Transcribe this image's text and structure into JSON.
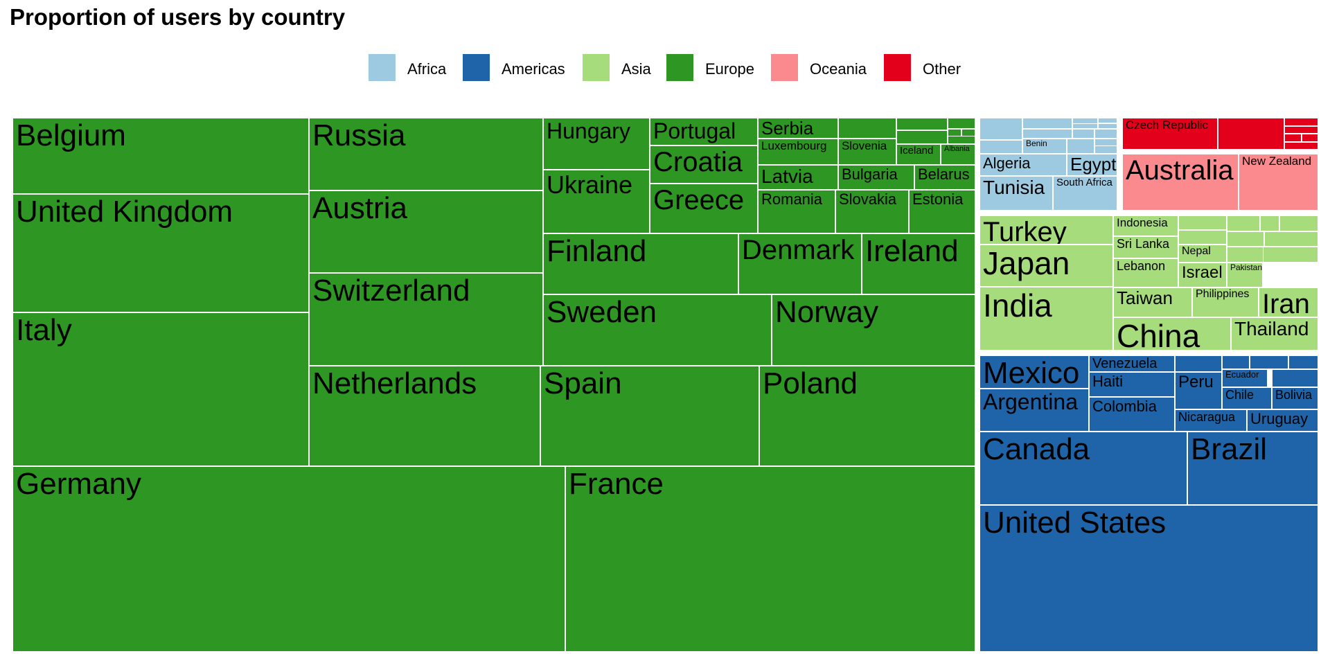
{
  "chart_data": {
    "type": "treemap",
    "title": "Proportion of users by country",
    "legend_position": "top",
    "colors": {
      "Africa": "#9ecae1",
      "Americas": "#1f64a8",
      "Asia": "#a6dc7c",
      "Europe": "#2e9622",
      "Oceania": "#fa8a8e",
      "Other": "#e3001a"
    },
    "legend": [
      "Africa",
      "Americas",
      "Asia",
      "Europe",
      "Oceania",
      "Other"
    ],
    "groups": [
      {
        "name": "Europe",
        "cells": [
          {
            "label": "Belgium"
          },
          {
            "label": "United Kingdom"
          },
          {
            "label": "Italy"
          },
          {
            "label": "Germany"
          },
          {
            "label": "France"
          },
          {
            "label": "Russia"
          },
          {
            "label": "Austria"
          },
          {
            "label": "Switzerland"
          },
          {
            "label": "Netherlands"
          },
          {
            "label": "Spain"
          },
          {
            "label": "Poland"
          },
          {
            "label": "Hungary"
          },
          {
            "label": "Ukraine"
          },
          {
            "label": "Portugal"
          },
          {
            "label": "Croatia"
          },
          {
            "label": "Greece"
          },
          {
            "label": "Serbia"
          },
          {
            "label": "Luxembourg"
          },
          {
            "label": "Slovenia"
          },
          {
            "label": "Iceland"
          },
          {
            "label": "Albania"
          },
          {
            "label": "Latvia"
          },
          {
            "label": "Bulgaria"
          },
          {
            "label": "Belarus"
          },
          {
            "label": "Romania"
          },
          {
            "label": "Slovakia"
          },
          {
            "label": "Estonia"
          },
          {
            "label": "Finland"
          },
          {
            "label": "Denmark"
          },
          {
            "label": "Ireland"
          },
          {
            "label": "Sweden"
          },
          {
            "label": "Norway"
          },
          {
            "label": ""
          },
          {
            "label": ""
          },
          {
            "label": ""
          },
          {
            "label": ""
          },
          {
            "label": ""
          },
          {
            "label": ""
          },
          {
            "label": ""
          }
        ]
      },
      {
        "name": "Africa",
        "cells": [
          {
            "label": "Algeria"
          },
          {
            "label": "Egypt"
          },
          {
            "label": "Tunisia"
          },
          {
            "label": "South Africa"
          },
          {
            "label": "Benin"
          },
          {
            "label": ""
          },
          {
            "label": ""
          },
          {
            "label": ""
          },
          {
            "label": ""
          },
          {
            "label": ""
          },
          {
            "label": ""
          },
          {
            "label": ""
          },
          {
            "label": ""
          },
          {
            "label": ""
          },
          {
            "label": ""
          },
          {
            "label": ""
          },
          {
            "label": ""
          },
          {
            "label": ""
          },
          {
            "label": ""
          }
        ]
      },
      {
        "name": "Other",
        "cells": [
          {
            "label": "Czech Republic"
          },
          {
            "label": ""
          },
          {
            "label": ""
          },
          {
            "label": ""
          },
          {
            "label": ""
          },
          {
            "label": ""
          },
          {
            "label": ""
          },
          {
            "label": ""
          }
        ]
      },
      {
        "name": "Oceania",
        "cells": [
          {
            "label": "Australia"
          },
          {
            "label": "New Zealand"
          }
        ]
      },
      {
        "name": "Asia",
        "cells": [
          {
            "label": "Turkey"
          },
          {
            "label": "Japan"
          },
          {
            "label": "India"
          },
          {
            "label": "China"
          },
          {
            "label": "Indonesia"
          },
          {
            "label": "Sri Lanka"
          },
          {
            "label": "Nepal"
          },
          {
            "label": "Lebanon"
          },
          {
            "label": "Israel"
          },
          {
            "label": "Pakistan"
          },
          {
            "label": "Taiwan"
          },
          {
            "label": "Philippines"
          },
          {
            "label": "Iran"
          },
          {
            "label": "Thailand"
          },
          {
            "label": ""
          },
          {
            "label": ""
          },
          {
            "label": ""
          },
          {
            "label": ""
          },
          {
            "label": ""
          },
          {
            "label": ""
          },
          {
            "label": ""
          },
          {
            "label": ""
          },
          {
            "label": ""
          }
        ]
      },
      {
        "name": "Americas",
        "cells": [
          {
            "label": "Mexico"
          },
          {
            "label": "Argentina"
          },
          {
            "label": "Venezuela"
          },
          {
            "label": "Haiti"
          },
          {
            "label": "Colombia"
          },
          {
            "label": "Peru"
          },
          {
            "label": "Ecuador"
          },
          {
            "label": "Chile"
          },
          {
            "label": "Bolivia"
          },
          {
            "label": "Nicaragua"
          },
          {
            "label": "Uruguay"
          },
          {
            "label": "Canada"
          },
          {
            "label": "Brazil"
          },
          {
            "label": "United States"
          },
          {
            "label": ""
          },
          {
            "label": ""
          },
          {
            "label": ""
          },
          {
            "label": ""
          },
          {
            "label": ""
          }
        ]
      }
    ]
  }
}
